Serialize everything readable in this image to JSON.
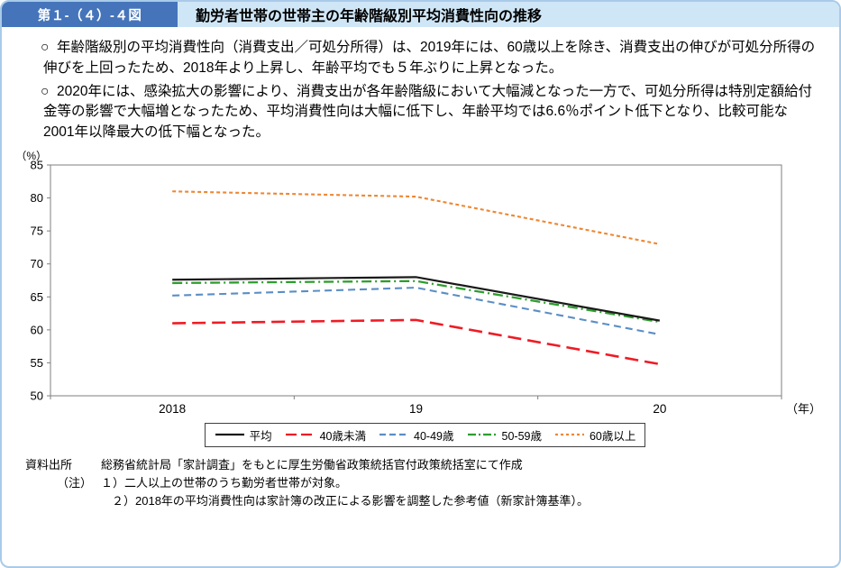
{
  "header": {
    "figure_label": "第１-（４）-４図",
    "title": "勤労者世帯の世帯主の年齢階級別平均消費性向の推移"
  },
  "bullets": [
    {
      "marker": "○",
      "text": "年齢階級別の平均消費性向（消費支出／可処分所得）は、2019年には、60歳以上を除き、消費支出の伸びが可処分所得の伸びを上回ったため、2018年より上昇し、年齢平均でも５年ぶりに上昇となった。"
    },
    {
      "marker": "○",
      "text": "2020年には、感染拡大の影響により、消費支出が各年齢階級において大幅減となった一方で、可処分所得は特別定額給付金等の影響で大幅増となったため、平均消費性向は大幅に低下し、年齢平均では6.6％ポイント低下となり、比較可能な2001年以降最大の低下幅となった。"
    }
  ],
  "chart_data": {
    "type": "line",
    "y_unit_label": "（%）",
    "x_unit_label": "（年）",
    "x_tick_labels": [
      "2018",
      "19",
      "20"
    ],
    "ylim": [
      50,
      85
    ],
    "ytick_step": 5,
    "grid": false,
    "legend_position": "bottom-center",
    "series": [
      {
        "name": "平均",
        "color": "#1a1a1a",
        "dash": "solid",
        "values": [
          67.6,
          68.0,
          61.4
        ]
      },
      {
        "name": "40歳未満",
        "color": "#ee1c25",
        "dash": "long-dash",
        "values": [
          61.0,
          61.5,
          54.8
        ]
      },
      {
        "name": "40-49歳",
        "color": "#5b8ec4",
        "dash": "dash",
        "values": [
          65.2,
          66.4,
          59.3
        ]
      },
      {
        "name": "50-59歳",
        "color": "#2e9e2e",
        "dash": "dash-dot",
        "values": [
          67.1,
          67.4,
          61.2
        ]
      },
      {
        "name": "60歳以上",
        "color": "#ed8733",
        "dash": "dot",
        "values": [
          81.0,
          80.2,
          73.0
        ]
      }
    ]
  },
  "footer": {
    "source_label": "資料出所",
    "source_text": "総務省統計局「家計調査」をもとに厚生労働省政策統括官付政策統括室にて作成",
    "note_label": "（注）",
    "notes": [
      "１）二人以上の世帯のうち勤労者世帯が対象。",
      "２）2018年の平均消費性向は家計簿の改正による影響を調整した参考値（新家計簿基準）。"
    ]
  }
}
